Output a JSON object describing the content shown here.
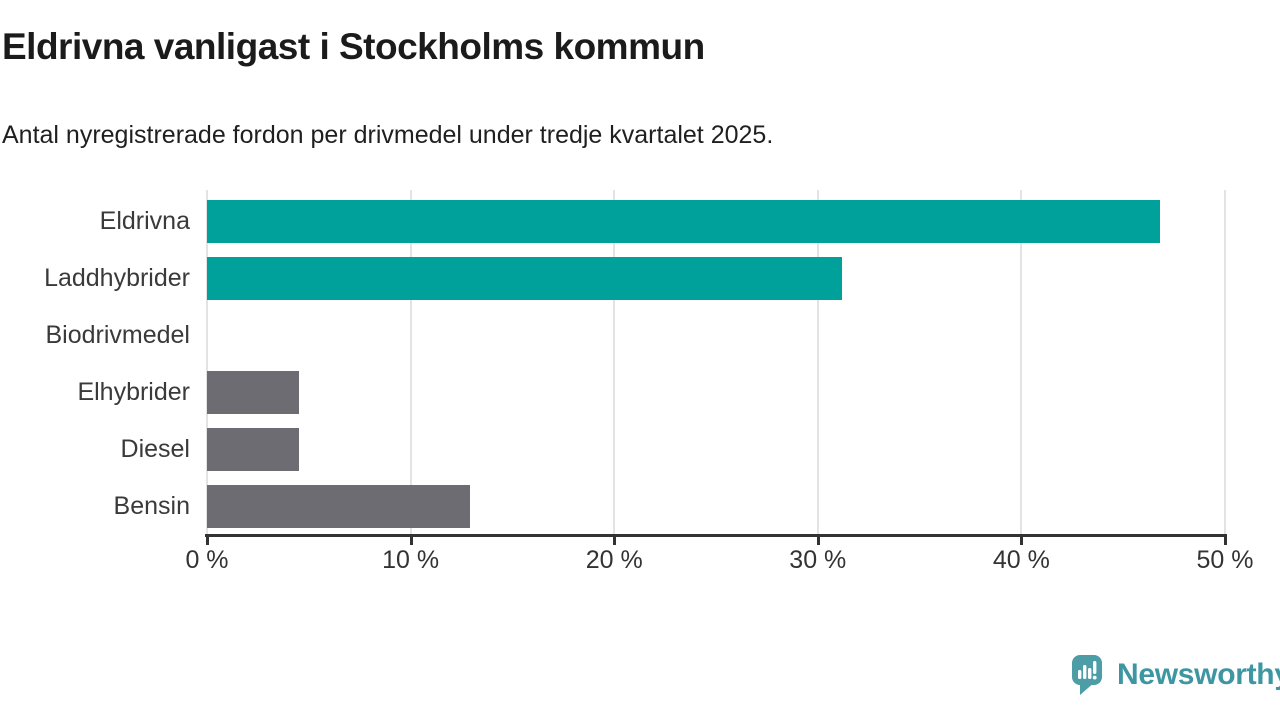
{
  "header": {
    "title": "Eldrivna vanligast i Stockholms kommun",
    "subtitle": "Antal nyregistrerade fordon per drivmedel under tredje kvartalet 2025."
  },
  "chart_data": {
    "type": "bar",
    "orientation": "horizontal",
    "title": "Eldrivna vanligast i Stockholms kommun",
    "subtitle": "Antal nyregistrerade fordon per drivmedel under tredje kvartalet 2025.",
    "categories": [
      "Eldrivna",
      "Laddhybrider",
      "Biodrivmedel",
      "Elhybrider",
      "Diesel",
      "Bensin"
    ],
    "values": [
      46.8,
      31.2,
      0,
      4.5,
      4.5,
      12.9
    ],
    "unit": "%",
    "xlim": [
      0,
      50
    ],
    "x_tick_values": [
      0,
      10,
      20,
      30,
      40,
      50
    ],
    "x_tick_labels": [
      "0 %",
      "10 %",
      "20 %",
      "30 %",
      "40 %",
      "50 %"
    ],
    "bar_colors": [
      "#00a19a",
      "#00a19a",
      "#00a19a",
      "#6c6c72",
      "#6c6c72",
      "#6c6c72"
    ],
    "grid": true,
    "legend": "none"
  },
  "colors": {
    "highlight": "#00a19a",
    "neutral": "#6c6c72",
    "gridline": "#e3e3e3",
    "axis": "#333333",
    "logo": "#4c9da6",
    "brand_text": "#3d96a1"
  },
  "footer": {
    "brand": "Newsworthy"
  }
}
